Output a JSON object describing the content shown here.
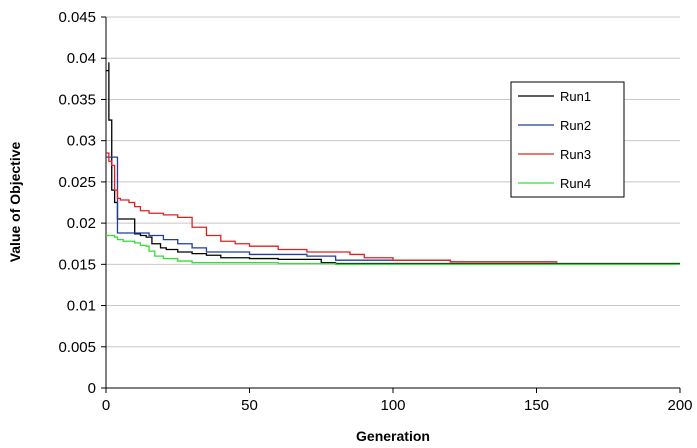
{
  "chart_data": {
    "type": "line",
    "title": "",
    "xlabel": "Generation",
    "ylabel": "Value of Objective",
    "xlim": [
      0,
      200
    ],
    "ylim": [
      0,
      0.045
    ],
    "xticks": [
      0,
      50,
      100,
      150,
      200
    ],
    "yticks": [
      0,
      0.005,
      0.01,
      0.015,
      0.02,
      0.025,
      0.03,
      0.035,
      0.04,
      0.045
    ],
    "xtick_labels": [
      "0",
      "50",
      "100",
      "150",
      "200"
    ],
    "ytick_labels": [
      "0",
      "0.005",
      "0.01",
      "0.015",
      "0.02",
      "0.025",
      "0.03",
      "0.035",
      "0.04",
      "0.045"
    ],
    "grid": {
      "horizontal": true,
      "vertical": false
    },
    "legend_position": "right-inside",
    "series": [
      {
        "name": "Run1",
        "color": "#000000",
        "x": [
          0,
          1,
          1,
          2,
          3,
          4,
          5,
          8,
          10,
          10,
          12,
          14,
          16,
          19,
          21,
          25,
          30,
          35,
          40,
          50,
          60,
          75,
          80,
          200
        ],
        "y": [
          0.0385,
          0.0395,
          0.0325,
          0.024,
          0.0225,
          0.0205,
          0.0205,
          0.0205,
          0.0205,
          0.0187,
          0.0185,
          0.0183,
          0.0175,
          0.017,
          0.0168,
          0.0165,
          0.0163,
          0.0161,
          0.0158,
          0.0157,
          0.0156,
          0.0152,
          0.0151,
          0.0151
        ]
      },
      {
        "name": "Run2",
        "color": "#1f3f9a",
        "x": [
          0,
          1,
          1,
          2,
          3,
          4,
          5,
          10,
          15,
          15,
          20,
          25,
          30,
          35,
          50,
          70,
          80,
          120,
          157
        ],
        "y": [
          0.028,
          0.028,
          0.028,
          0.028,
          0.028,
          0.0188,
          0.0188,
          0.0188,
          0.0187,
          0.0185,
          0.018,
          0.0175,
          0.017,
          0.0165,
          0.0162,
          0.016,
          0.0155,
          0.0153,
          0.0152
        ]
      },
      {
        "name": "Run3",
        "color": "#e02020",
        "x": [
          0,
          1,
          2,
          3,
          4,
          5,
          8,
          10,
          12,
          15,
          20,
          25,
          30,
          35,
          40,
          45,
          50,
          60,
          70,
          80,
          85,
          90,
          100,
          120,
          157
        ],
        "y": [
          0.0285,
          0.0275,
          0.027,
          0.024,
          0.023,
          0.0228,
          0.0225,
          0.022,
          0.0215,
          0.0212,
          0.021,
          0.0207,
          0.0195,
          0.0185,
          0.0178,
          0.0175,
          0.0172,
          0.0168,
          0.0165,
          0.0165,
          0.0162,
          0.0158,
          0.0155,
          0.0153,
          0.0152
        ]
      },
      {
        "name": "Run4",
        "color": "#33dd33",
        "x": [
          0,
          1,
          2,
          3,
          4,
          6,
          8,
          10,
          12,
          14,
          15,
          17,
          20,
          25,
          30,
          40,
          60,
          80,
          200
        ],
        "y": [
          0.0185,
          0.0185,
          0.0185,
          0.0183,
          0.018,
          0.0178,
          0.0178,
          0.0176,
          0.0173,
          0.0172,
          0.0166,
          0.016,
          0.0157,
          0.0154,
          0.0152,
          0.0152,
          0.0151,
          0.015,
          0.015
        ]
      }
    ]
  }
}
